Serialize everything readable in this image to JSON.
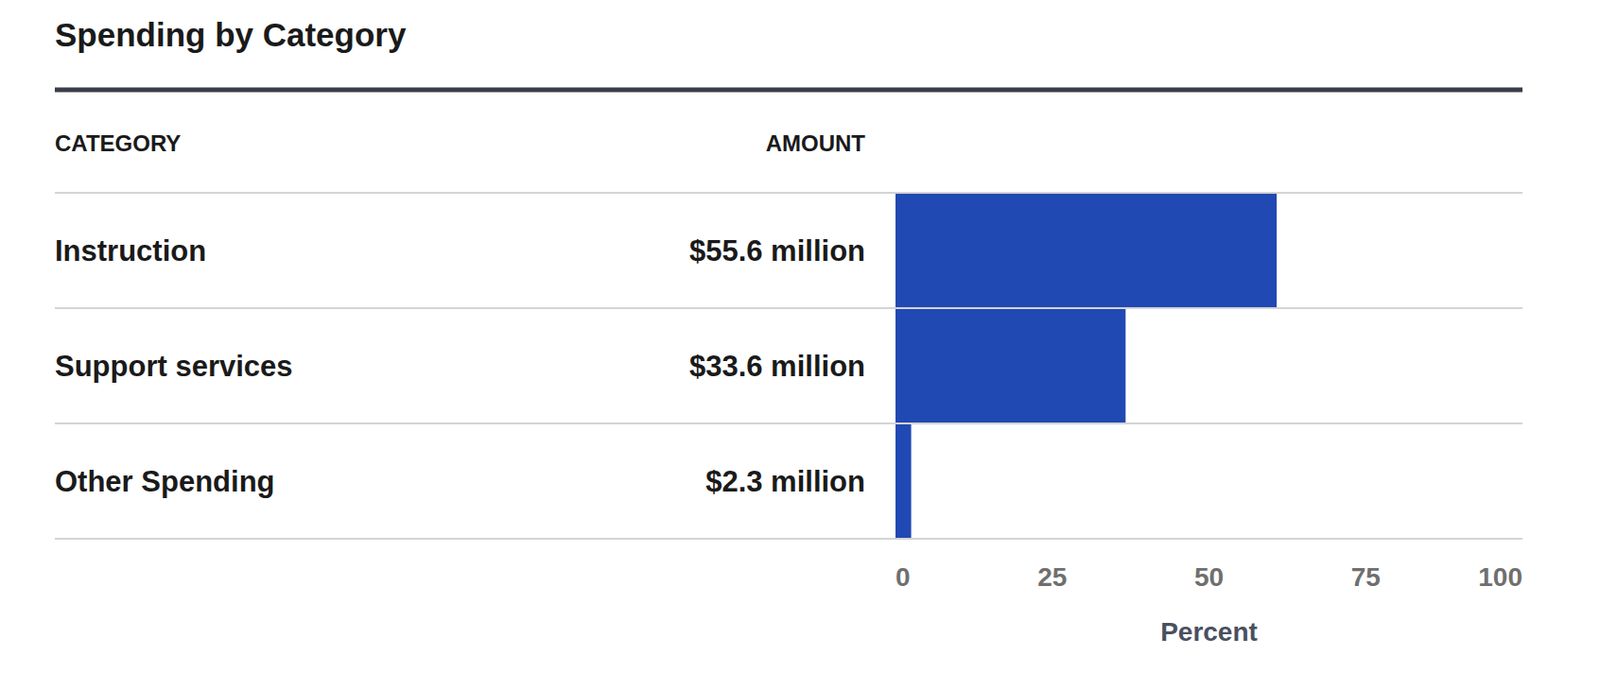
{
  "chart_data": {
    "type": "bar",
    "orientation": "horizontal",
    "title": "Spending by Category",
    "category_header": "CATEGORY",
    "amount_header": "AMOUNT",
    "categories": [
      "Instruction",
      "Support services",
      "Other Spending"
    ],
    "amounts": [
      "$55.6 million",
      "$33.6 million",
      "$2.3 million"
    ],
    "values": [
      60.8,
      36.7,
      2.5
    ],
    "color": "#2149b3",
    "xlabel": "Percent",
    "xlim": [
      0,
      100
    ],
    "xticks": [
      0,
      25,
      50,
      75,
      100
    ],
    "grid": false
  }
}
